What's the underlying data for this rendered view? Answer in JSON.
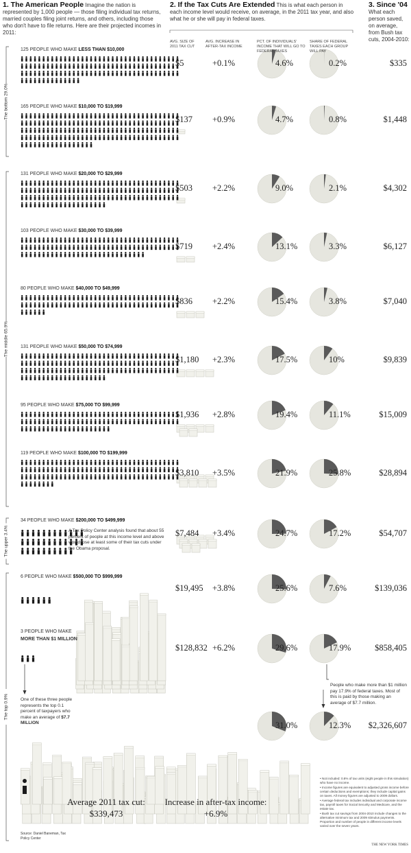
{
  "section1": {
    "title": "1. The American People",
    "text": "Imagine the nation is represented by 1,000 people — those filing individual tax returns, married couples filing joint returns, and others, including those who don't have to file returns. Here are their projected incomes in 2011:"
  },
  "section2": {
    "title": "2. If the Tax Cuts Are Extended",
    "text": "This is what each person in each income level would receive, on average, in the 2011 tax year, and also what he or she will pay in federal taxes."
  },
  "section3": {
    "title": "3. Since '04",
    "text": "What each person saved, on average, from Bush tax cuts, 2004-2010:"
  },
  "columns": [
    "AVG. SIZE OF 2011 TAX CUT",
    "AVG. INCREASE IN AFTER-TAX INCOME",
    "PCT. OF INDIVIDUALS' INCOME THAT WILL GO TO FEDERAL TAXES",
    "SHARE OF FEDERAL TAXES EACH GROUP WILL PAY"
  ],
  "brackets": [
    "The bottom 29.0%",
    "The middle 65.9%",
    "The upper 3.4%",
    "The top 0.9%"
  ],
  "groups": [
    {
      "count": 125,
      "lead": "PEOPLE WHO MAKE",
      "bracket": "LESS THAN $10,000",
      "tax_cut": "$5",
      "increase": "+0.1%",
      "pct": {
        "value": 4.6,
        "label": "4.6%"
      },
      "share": {
        "value": 0.2,
        "label": "0.2%"
      },
      "since": "$335"
    },
    {
      "count": 165,
      "lead": "PEOPLE WHO MAKE",
      "bracket": "$10,000 TO $19,999",
      "tax_cut": "$137",
      "increase": "+0.9%",
      "pct": {
        "value": 4.7,
        "label": "4.7%"
      },
      "share": {
        "value": 0.8,
        "label": "0.8%"
      },
      "since": "$1,448"
    },
    {
      "count": 131,
      "lead": "PEOPLE WHO MAKE",
      "bracket": "$20,000 TO $29,999",
      "tax_cut": "$503",
      "increase": "+2.2%",
      "pct": {
        "value": 9.0,
        "label": "9.0%"
      },
      "share": {
        "value": 2.1,
        "label": "2.1%"
      },
      "since": "$4,302"
    },
    {
      "count": 103,
      "lead": "PEOPLE WHO MAKE",
      "bracket": "$30,000 TO $39,999",
      "tax_cut": "$719",
      "increase": "+2.4%",
      "pct": {
        "value": 13.1,
        "label": "13.1%"
      },
      "share": {
        "value": 3.3,
        "label": "3.3%"
      },
      "since": "$6,127"
    },
    {
      "count": 80,
      "lead": "PEOPLE WHO MAKE",
      "bracket": "$40,000 TO $49,999",
      "tax_cut": "$836",
      "increase": "+2.2%",
      "pct": {
        "value": 15.4,
        "label": "15.4%"
      },
      "share": {
        "value": 3.8,
        "label": "3.8%"
      },
      "since": "$7,040"
    },
    {
      "count": 131,
      "lead": "PEOPLE WHO MAKE",
      "bracket": "$50,000 TO $74,999",
      "tax_cut": "$1,180",
      "increase": "+2.3%",
      "pct": {
        "value": 17.5,
        "label": "17.5%"
      },
      "share": {
        "value": 10,
        "label": "10%"
      },
      "since": "$9,839"
    },
    {
      "count": 95,
      "lead": "PEOPLE WHO MAKE",
      "bracket": "$75,000 TO $99,999",
      "tax_cut": "$1,936",
      "increase": "+2.8%",
      "pct": {
        "value": 19.4,
        "label": "19.4%"
      },
      "share": {
        "value": 11.1,
        "label": "11.1%"
      },
      "since": "$15,009"
    },
    {
      "count": 119,
      "lead": "PEOPLE WHO MAKE",
      "bracket": "$100,000 TO $199,999",
      "tax_cut": "$3,810",
      "increase": "+3.5%",
      "pct": {
        "value": 21.9,
        "label": "21.9%"
      },
      "share": {
        "value": 25.8,
        "label": "25.8%"
      },
      "since": "$28,894"
    },
    {
      "count": 34,
      "lead": "PEOPLE WHO MAKE",
      "bracket": "$200,000 TO $499,999",
      "tax_cut": "$7,484",
      "increase": "+3.4%",
      "pct": {
        "value": 24.7,
        "label": "24.7%"
      },
      "share": {
        "value": 17.2,
        "label": "17.2%"
      },
      "since": "$54,707"
    },
    {
      "count": 6,
      "lead": "PEOPLE WHO MAKE",
      "bracket": "$500,000 TO $999,999",
      "tax_cut": "$19,495",
      "increase": "+3.8%",
      "pct": {
        "value": 25.6,
        "label": "25.6%"
      },
      "share": {
        "value": 7.6,
        "label": "7.6%"
      },
      "since": "$139,036"
    },
    {
      "count": 3,
      "lead": "PEOPLE WHO MAKE",
      "bracket": "MORE THAN $1 MILLION",
      "tax_cut": "$128,832",
      "increase": "+6.2%",
      "pct": {
        "value": 29.6,
        "label": "29.6%"
      },
      "share": {
        "value": 17.9,
        "label": "17.9%"
      },
      "since": "$858,405"
    }
  ],
  "top_tenth": {
    "pct": {
      "value": 31.0,
      "label": "31.0%"
    },
    "share": {
      "value": 12.3,
      "label": "12.3%"
    },
    "since": "$2,326,607",
    "avg_label": "Average 2011 tax cut:",
    "avg_value": "$339,473",
    "increase_label": "Increase in after-tax income:",
    "increase_value": "+6.9%"
  },
  "notes": {
    "tpc": "A Tax Policy Center analysis found that about 55 percent of people at this income level and above would lose at least some of their tax cuts under the Obama proposal.",
    "million": "People who make more than $1 million pay 17.9% of federal taxes. Most of this is paid by those making an average of $7.7 million.",
    "one": "One of these three people represents the top 0.1 percent of taxpayers who make an average of",
    "one_bold": "$7.7 MILLION"
  },
  "footnotes": [
    "• Not included: 0.8% of tax units (eight people in this simulation) who have no income.",
    "• Income figures are equivalent to adjusted gross income before certain deductions and exemptions; they include capital gains on taxes. All money figures are adjusted to 2009 dollars.",
    "• Average federal tax includes individual and corporate income tax, payroll taxes for Social Security and Medicare, and the estate tax.",
    "• Bush tax cut savings from 2004-2010 include changes to the alternative minimum tax and 2009 stimulus payments. Proportion and number of people in different income levels varied over the seven years."
  ],
  "source": "Source: Daniel Baneman, Tax Policy Center",
  "credit": "THE NEW YORK TIMES"
}
